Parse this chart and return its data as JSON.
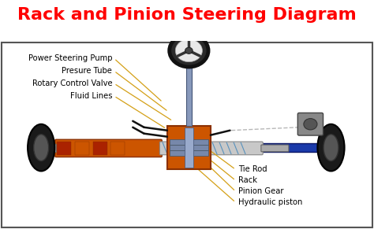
{
  "title": "Rack and Pinion Steering Diagram",
  "title_color": "#FF0000",
  "title_fontsize": 16,
  "bg_color": "#FFFFFF",
  "outer_bg": "#F0F0F0",
  "border_color": "#555555",
  "left_labels": [
    "Power Steering Pump",
    "Presure Tube",
    "Rotary Control Valve",
    "Fluid Lines"
  ],
  "right_labels": [
    "Tie Rod",
    "Rack",
    "Pinion Gear",
    "Hydraulic piston"
  ],
  "annotation_color": "#D4A017",
  "label_fontsize": 7.2,
  "label_color": "#000000",
  "axle_color": "#1a3aaa",
  "rack_color": "#cc5500",
  "rack_dark": "#8B3000",
  "tire_color": "#1a1a1a",
  "pinion_color": "#cc5500",
  "col_color": "#8899bb",
  "sw_color": "#111111",
  "pump_color": "#888888"
}
